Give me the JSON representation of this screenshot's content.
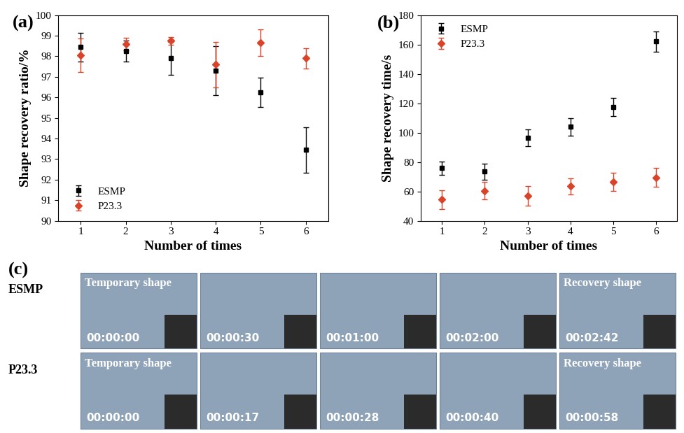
{
  "chart_data": [
    {
      "type": "scatter",
      "title": "(a)",
      "x_label": "Number of times",
      "y_label": "Shape recovery ratio/%",
      "x": [
        1,
        2,
        3,
        4,
        5,
        6
      ],
      "xlim": [
        0.5,
        6.5
      ],
      "xticks": [
        1,
        2,
        3,
        4,
        5,
        6
      ],
      "ylim": [
        90,
        100
      ],
      "yticks": [
        90,
        91,
        92,
        93,
        94,
        95,
        96,
        97,
        98,
        99,
        100
      ],
      "grid": false,
      "legend": "lower left",
      "series": [
        {
          "name": "ESMP",
          "color": "#000000",
          "marker": "square",
          "values": [
            98.45,
            98.25,
            97.9,
            97.3,
            96.25,
            93.45
          ],
          "errors": [
            0.7,
            0.5,
            0.8,
            1.2,
            0.7,
            1.1
          ]
        },
        {
          "name": "P23.3",
          "color": "#d9432a",
          "marker": "diamond",
          "values": [
            98.05,
            98.6,
            98.75,
            97.6,
            98.65,
            97.9
          ],
          "errors": [
            0.8,
            0.3,
            0.2,
            1.1,
            0.65,
            0.5
          ]
        }
      ]
    },
    {
      "type": "scatter",
      "title": "(b)",
      "x_label": "Number of times",
      "y_label": "Shape recovery time/s",
      "x": [
        1,
        2,
        3,
        4,
        5,
        6
      ],
      "xlim": [
        0.5,
        6.5
      ],
      "xticks": [
        1,
        2,
        3,
        4,
        5,
        6
      ],
      "ylim": [
        40,
        180
      ],
      "yticks": [
        40,
        60,
        80,
        100,
        120,
        140,
        160,
        180
      ],
      "grid": false,
      "legend": "upper left",
      "series": [
        {
          "name": "ESMP",
          "color": "#000000",
          "marker": "square",
          "values": [
            76,
            73.5,
            96.5,
            104,
            117.5,
            162
          ],
          "errors": [
            4.5,
            5.5,
            5.5,
            6,
            6,
            7
          ]
        },
        {
          "name": "P23.3",
          "color": "#d9432a",
          "marker": "diamond",
          "values": [
            54.5,
            60.5,
            57,
            63.5,
            66.5,
            69.5
          ],
          "errors": [
            6.5,
            6,
            6.5,
            5.5,
            6,
            6.5
          ]
        }
      ]
    }
  ],
  "photo_panel": {
    "title": "(c)",
    "rows": [
      {
        "label": "ESMP",
        "frames": [
          {
            "caption": "Temporary shape",
            "time": "00:00:00"
          },
          {
            "time": "00:00:30"
          },
          {
            "time": "00:01:00"
          },
          {
            "time": "00:02:00"
          },
          {
            "caption": "Recovery shape",
            "time": "00:02:42"
          }
        ]
      },
      {
        "label": "P23.3",
        "frames": [
          {
            "caption": "Temporary shape",
            "time": "00:00:00"
          },
          {
            "time": "00:00:17"
          },
          {
            "time": "00:00:28"
          },
          {
            "time": "00:00:40"
          },
          {
            "caption": "Recovery shape",
            "time": "00:00:58"
          }
        ]
      }
    ]
  }
}
